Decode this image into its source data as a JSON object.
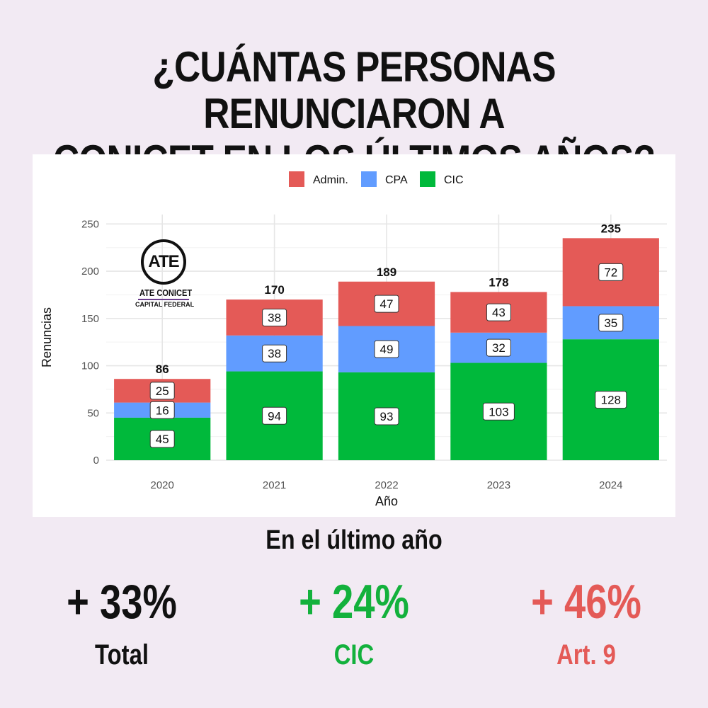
{
  "headline": {
    "line1": "¿CUÁNTAS PERSONAS RENUNCIARON A",
    "line2": "CONICET EN LOS ÚLTIMOS AÑOS?"
  },
  "logo": {
    "mark": "ATE",
    "name": "ATE CONICET",
    "sub": "CAPITAL FEDERAL"
  },
  "chart_data": {
    "type": "bar",
    "stacked": true,
    "categories": [
      "2020",
      "2021",
      "2022",
      "2023",
      "2024"
    ],
    "series": [
      {
        "name": "CIC",
        "color": "#00b93b",
        "values": [
          45,
          94,
          93,
          103,
          128
        ]
      },
      {
        "name": "CPA",
        "color": "#619cff",
        "values": [
          16,
          38,
          49,
          32,
          35
        ]
      },
      {
        "name": "Admin.",
        "color": "#e45a57",
        "values": [
          25,
          38,
          47,
          43,
          72
        ]
      }
    ],
    "totals": [
      86,
      170,
      189,
      178,
      235
    ],
    "legend_order": [
      "Admin.",
      "CPA",
      "CIC"
    ],
    "legend_position": "top",
    "xlabel": "Año",
    "ylabel": "Renuncias",
    "ylim": [
      0,
      260
    ],
    "yticks": [
      0,
      50,
      100,
      150,
      200,
      250
    ],
    "grid": true
  },
  "summary": {
    "heading": "En el último año",
    "stats": [
      {
        "value": "+ 33%",
        "label": "Total",
        "color": "#111111"
      },
      {
        "value": "+ 24%",
        "label": "CIC",
        "color": "#13b13c"
      },
      {
        "value": "+ 46%",
        "label": "Art. 9",
        "color": "#e45a57"
      }
    ]
  }
}
